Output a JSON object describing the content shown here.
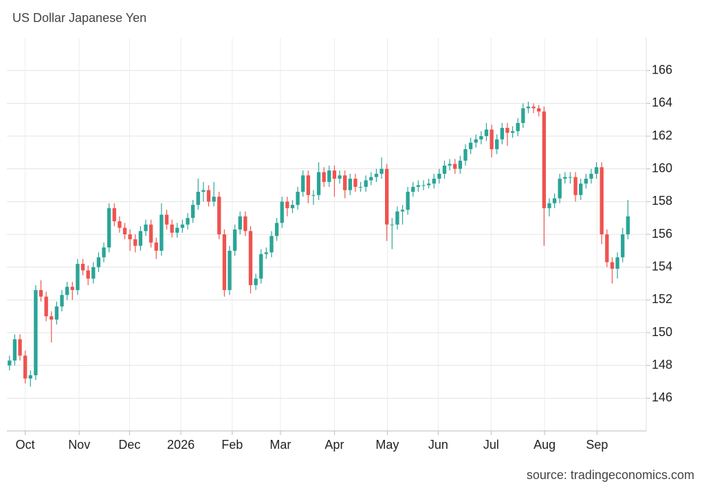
{
  "chart_data": {
    "type": "candlestick",
    "title": "US Dollar Japanese Yen",
    "source": "source: tradingeconomics.com",
    "up_color": "#2aa597",
    "down_color": "#ef5350",
    "grid": true,
    "ylim": [
      144,
      168
    ],
    "yticks": [
      146,
      148,
      150,
      152,
      154,
      156,
      158,
      160,
      162,
      164,
      166
    ],
    "xlim": [
      -0.5,
      121.5
    ],
    "xticks": [
      {
        "value": 3.0,
        "label": "Oct"
      },
      {
        "value": 13.3,
        "label": "Nov"
      },
      {
        "value": 22.9,
        "label": "Dec"
      },
      {
        "value": 32.7,
        "label": "2026"
      },
      {
        "value": 42.5,
        "label": "Feb"
      },
      {
        "value": 51.7,
        "label": "Mar"
      },
      {
        "value": 62.0,
        "label": "Apr"
      },
      {
        "value": 72.1,
        "label": "May"
      },
      {
        "value": 81.8,
        "label": "Jun"
      },
      {
        "value": 91.9,
        "label": "Jul"
      },
      {
        "value": 102.1,
        "label": "Aug"
      },
      {
        "value": 112.1,
        "label": "Sep"
      }
    ],
    "open": [
      148.0,
      148.3,
      149.6,
      148.6,
      147.2,
      147.4,
      152.6,
      152.2,
      151.0,
      150.8,
      151.6,
      152.3,
      152.8,
      152.6,
      154.2,
      153.8,
      153.3,
      154.0,
      154.6,
      155.2,
      157.6,
      156.8,
      156.4,
      156.0,
      155.7,
      155.3,
      156.2,
      156.6,
      155.5,
      155.0,
      157.2,
      156.6,
      156.1,
      156.4,
      156.6,
      157.0,
      157.8,
      158.6,
      158.7,
      158.0,
      158.3,
      156.0,
      152.6,
      155.0,
      156.3,
      157.1,
      156.2,
      152.9,
      153.3,
      154.8,
      154.9,
      155.9,
      156.7,
      158.0,
      157.6,
      157.8,
      158.6,
      159.6,
      158.4,
      158.4,
      159.8,
      159.2,
      159.9,
      159.4,
      159.6,
      158.7,
      159.4,
      158.9,
      158.9,
      159.3,
      159.5,
      159.7,
      160.0,
      156.6,
      156.6,
      157.4,
      157.5,
      158.6,
      158.9,
      159.0,
      159.0,
      159.1,
      159.4,
      159.7,
      160.2,
      160.3,
      160.0,
      160.5,
      161.2,
      161.6,
      161.8,
      162.0,
      162.4,
      161.2,
      161.8,
      162.5,
      162.2,
      162.3,
      162.8,
      163.7,
      163.8,
      163.7,
      163.5,
      157.6,
      157.9,
      158.2,
      159.4,
      159.5,
      159.5,
      158.4,
      159.1,
      159.4,
      159.7,
      160.1,
      156.0,
      154.3,
      153.9,
      154.6,
      156.0
    ],
    "high": [
      148.6,
      149.9,
      149.9,
      148.9,
      147.7,
      152.9,
      153.2,
      152.5,
      151.3,
      151.9,
      152.6,
      153.1,
      153.1,
      154.5,
      154.5,
      154.1,
      154.3,
      154.9,
      155.5,
      157.9,
      157.9,
      157.1,
      156.7,
      156.3,
      156.0,
      156.5,
      156.9,
      156.9,
      155.8,
      157.9,
      157.5,
      156.9,
      156.7,
      156.9,
      157.3,
      158.1,
      159.4,
      159.2,
      159.0,
      159.2,
      158.6,
      156.3,
      155.3,
      156.6,
      157.4,
      157.4,
      156.5,
      153.6,
      155.1,
      155.2,
      156.2,
      157.0,
      158.3,
      158.3,
      158.1,
      158.9,
      159.9,
      159.9,
      158.7,
      160.4,
      160.1,
      160.2,
      160.2,
      159.9,
      159.9,
      159.7,
      159.7,
      159.2,
      159.6,
      159.8,
      160.0,
      160.7,
      160.3,
      157.0,
      157.7,
      157.8,
      158.9,
      159.2,
      159.3,
      159.3,
      159.4,
      159.7,
      160.0,
      160.5,
      160.6,
      160.6,
      160.8,
      161.5,
      161.9,
      162.1,
      162.3,
      162.8,
      162.7,
      162.1,
      162.8,
      162.8,
      162.6,
      163.1,
      164.0,
      164.1,
      164.0,
      163.9,
      163.8,
      158.2,
      158.5,
      159.7,
      159.8,
      159.8,
      159.8,
      159.4,
      159.7,
      160.0,
      160.4,
      160.4,
      156.3,
      154.6,
      154.9,
      156.4,
      158.1
    ],
    "low": [
      147.7,
      148.0,
      148.3,
      146.9,
      146.7,
      147.1,
      151.9,
      150.7,
      149.4,
      150.5,
      151.3,
      152.0,
      152.0,
      152.3,
      153.5,
      152.9,
      153.0,
      153.7,
      154.3,
      154.9,
      156.5,
      156.1,
      155.7,
      155.0,
      154.9,
      155.0,
      155.9,
      155.2,
      154.5,
      154.7,
      156.3,
      155.8,
      155.8,
      156.1,
      156.3,
      156.7,
      157.5,
      158.0,
      157.7,
      157.7,
      155.7,
      152.2,
      152.3,
      154.7,
      156.0,
      155.9,
      152.4,
      152.6,
      153.0,
      154.5,
      154.6,
      155.6,
      156.4,
      157.1,
      157.3,
      157.5,
      158.3,
      157.9,
      157.8,
      158.1,
      158.9,
      158.9,
      158.3,
      159.1,
      158.2,
      158.4,
      158.6,
      158.6,
      158.6,
      159.0,
      159.2,
      159.4,
      155.6,
      155.1,
      156.3,
      156.6,
      157.2,
      158.3,
      158.6,
      158.7,
      158.8,
      158.8,
      159.1,
      159.4,
      159.9,
      159.7,
      159.7,
      160.2,
      160.9,
      161.3,
      161.5,
      161.7,
      160.7,
      160.9,
      161.5,
      161.4,
      161.9,
      162.0,
      162.5,
      163.4,
      163.4,
      163.2,
      155.3,
      157.1,
      157.6,
      157.9,
      159.1,
      159.1,
      158.0,
      158.1,
      158.8,
      159.1,
      159.4,
      155.4,
      154.0,
      153.0,
      153.3,
      154.3,
      155.7
    ],
    "close": [
      148.3,
      149.6,
      148.6,
      147.2,
      147.4,
      152.6,
      152.2,
      151.0,
      150.8,
      151.6,
      152.3,
      152.8,
      152.6,
      154.2,
      153.8,
      153.3,
      154.0,
      154.6,
      155.2,
      157.6,
      156.8,
      156.4,
      156.0,
      155.7,
      155.3,
      156.2,
      156.6,
      155.5,
      155.0,
      157.2,
      156.6,
      156.1,
      156.4,
      156.6,
      157.0,
      157.8,
      158.6,
      158.7,
      158.0,
      158.3,
      156.0,
      152.6,
      155.0,
      156.3,
      157.1,
      156.2,
      152.9,
      153.3,
      154.8,
      154.9,
      155.9,
      156.7,
      158.0,
      157.6,
      157.8,
      158.6,
      159.6,
      158.4,
      158.4,
      159.8,
      159.2,
      159.9,
      159.4,
      159.6,
      158.7,
      159.4,
      158.9,
      158.9,
      159.3,
      159.5,
      159.7,
      160.0,
      156.6,
      156.6,
      157.4,
      157.5,
      158.6,
      158.9,
      159.0,
      159.0,
      159.1,
      159.4,
      159.7,
      160.2,
      160.3,
      160.0,
      160.5,
      161.2,
      161.6,
      161.8,
      162.0,
      162.4,
      161.2,
      161.8,
      162.5,
      162.2,
      162.3,
      162.8,
      163.7,
      163.8,
      163.7,
      163.5,
      157.6,
      157.9,
      158.2,
      159.4,
      159.5,
      159.5,
      158.4,
      159.1,
      159.4,
      159.7,
      160.1,
      156.0,
      154.3,
      153.9,
      154.6,
      156.0,
      157.1
    ]
  }
}
